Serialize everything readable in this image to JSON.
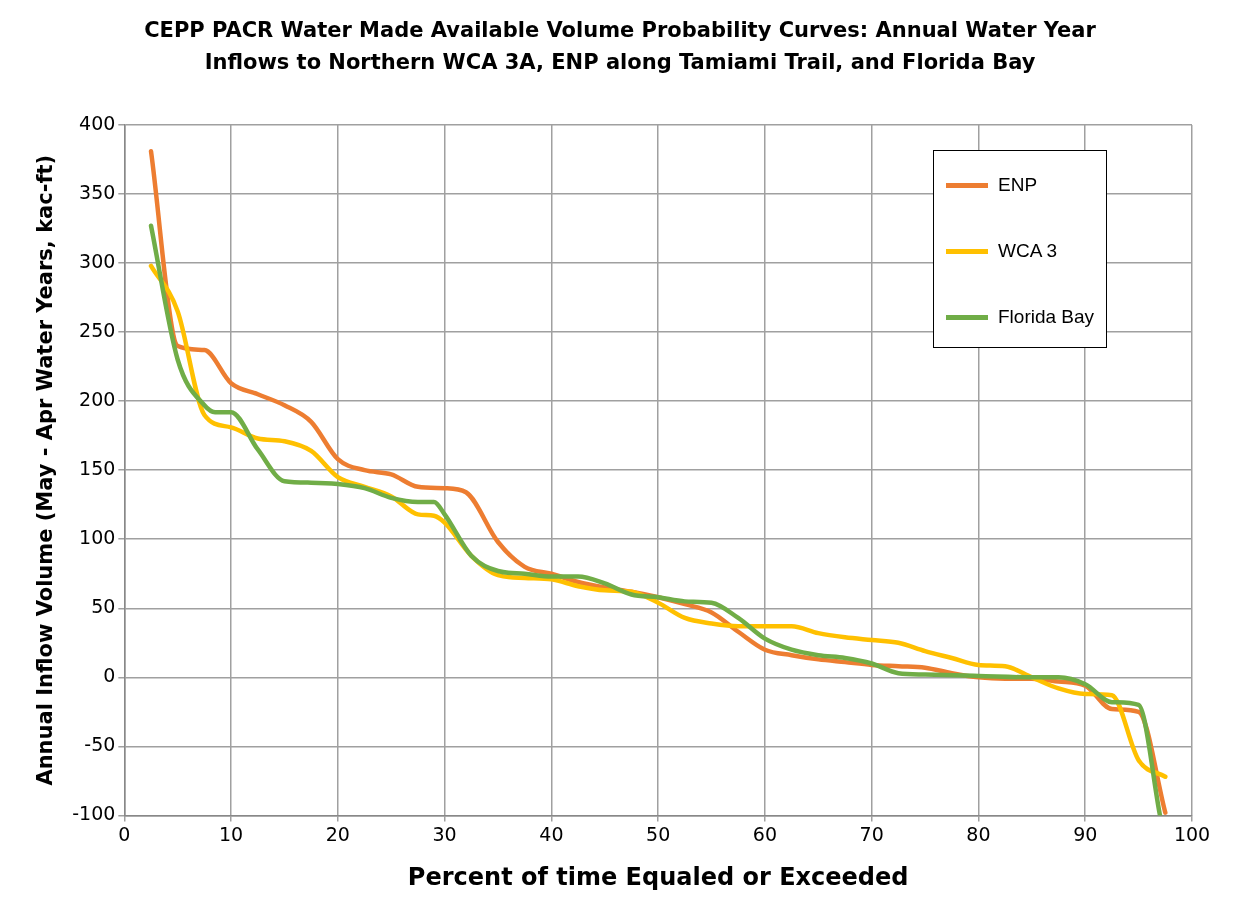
{
  "chart_data": {
    "type": "line",
    "title": "CEPP PACR Water Made Available Volume Probability Curves: Annual Water Year Inflows to Northern WCA 3A, ENP along Tamiami Trail, and Florida Bay",
    "xlabel": "Percent of time Equaled or Exceeded",
    "ylabel": "Annual Inflow Volume (May - Apr Water Years, kac-ft)",
    "xlim": [
      0,
      100
    ],
    "xticks": [
      0,
      10,
      20,
      30,
      40,
      50,
      60,
      70,
      80,
      90,
      100
    ],
    "ylim": [
      -100,
      400
    ],
    "yticks": [
      -100,
      -50,
      0,
      50,
      100,
      150,
      200,
      250,
      300,
      350,
      400
    ],
    "grid": true,
    "legend": "top right",
    "marker": "none",
    "line_style": "solid",
    "series": [
      {
        "name": "ENP",
        "color": "#ed7d31",
        "x": [
          2.5,
          5,
          7.5,
          10,
          12.5,
          15,
          17.5,
          20,
          22.5,
          25,
          27.5,
          30,
          32,
          35,
          37.5,
          40,
          42.5,
          45,
          47.5,
          50,
          52.5,
          55,
          57.5,
          60,
          62.5,
          65,
          67.5,
          70,
          72.5,
          75,
          77.5,
          80,
          82.5,
          85,
          87.5,
          90,
          92.5,
          95,
          97.5
        ],
        "values": [
          381,
          240,
          237,
          213,
          205,
          197,
          185,
          158,
          150,
          147,
          138,
          137,
          134,
          98,
          80,
          75,
          69,
          65,
          62,
          58,
          53,
          47,
          33,
          20,
          16,
          13,
          11,
          9,
          8,
          7,
          3,
          0,
          -1,
          -1,
          -3,
          -6,
          -23,
          -25,
          -98
        ]
      },
      {
        "name": "WCA 3",
        "color": "#ffc000",
        "x": [
          2.5,
          5,
          7.5,
          10,
          12.5,
          15,
          17.5,
          20,
          22.5,
          25,
          27.5,
          29,
          30,
          32.5,
          35,
          37.5,
          40,
          42.5,
          45,
          47.5,
          50,
          52.5,
          55,
          57.5,
          60,
          62.5,
          65,
          67.5,
          70,
          72.5,
          75,
          77.5,
          80,
          82.5,
          85,
          87.5,
          90,
          92.5,
          95,
          97.5
        ],
        "values": [
          298,
          265,
          190,
          181,
          173,
          171,
          164,
          145,
          138,
          131,
          118,
          117,
          112,
          88,
          74,
          72,
          71,
          66,
          63,
          62,
          54,
          43,
          39,
          37,
          37,
          37,
          32,
          29,
          27,
          25,
          19,
          14,
          9,
          8,
          0,
          -8,
          -12,
          -13,
          -60,
          -72
        ]
      },
      {
        "name": "Florida Bay",
        "color": "#70ad47",
        "x": [
          2.5,
          5,
          7.5,
          8.5,
          10,
          12.5,
          15,
          17.5,
          20,
          22.5,
          25,
          27.5,
          29,
          30,
          32.5,
          35,
          37.5,
          40,
          42.5,
          45,
          47.5,
          50,
          52.5,
          55,
          57.5,
          60,
          62.5,
          65,
          67.5,
          70,
          72.5,
          75,
          80,
          85,
          87.5,
          90,
          92.5,
          95,
          97
        ],
        "values": [
          327,
          230,
          197,
          192,
          192,
          165,
          142,
          141,
          140,
          137,
          130,
          127,
          127,
          118,
          88,
          77,
          75,
          73,
          73,
          68,
          60,
          58,
          55,
          54,
          43,
          28,
          20,
          16,
          14,
          10,
          3,
          2,
          1,
          0,
          0,
          -5,
          -18,
          -20,
          -100
        ]
      }
    ]
  }
}
